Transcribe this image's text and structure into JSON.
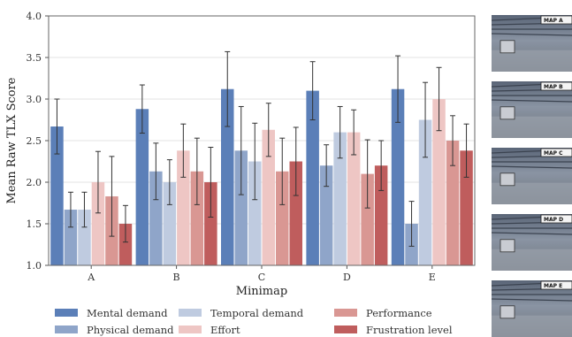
{
  "chart_data": {
    "type": "bar",
    "title": "",
    "xlabel": "Minimap",
    "ylabel": "Mean Raw TLX Score",
    "ylim": [
      1.0,
      4.0
    ],
    "yticks": [
      "1.0",
      "1.5",
      "2.0",
      "2.5",
      "3.0",
      "3.5",
      "4.0"
    ],
    "grid": true,
    "legend_position": "bottom",
    "categories": [
      "A",
      "B",
      "C",
      "D",
      "E"
    ],
    "series": [
      {
        "name": "Mental demand",
        "color": "#5b7fb8",
        "values": [
          2.67,
          2.88,
          3.12,
          3.1,
          3.12
        ],
        "errors": [
          0.33,
          0.29,
          0.45,
          0.35,
          0.4
        ]
      },
      {
        "name": "Physical demand",
        "color": "#8fa5c9",
        "values": [
          1.67,
          2.13,
          2.38,
          2.2,
          1.5
        ],
        "errors": [
          0.21,
          0.34,
          0.53,
          0.25,
          0.27
        ]
      },
      {
        "name": "Temporal demand",
        "color": "#bfcbe0",
        "values": [
          1.67,
          2.0,
          2.25,
          2.6,
          2.75
        ],
        "errors": [
          0.21,
          0.27,
          0.46,
          0.31,
          0.45
        ]
      },
      {
        "name": "Effort",
        "color": "#eec6c4",
        "values": [
          2.0,
          2.38,
          2.63,
          2.6,
          3.0
        ],
        "errors": [
          0.37,
          0.32,
          0.32,
          0.27,
          0.38
        ]
      },
      {
        "name": "Performance",
        "color": "#d99793",
        "values": [
          1.83,
          2.13,
          2.13,
          2.1,
          2.5
        ],
        "errors": [
          0.48,
          0.4,
          0.4,
          0.41,
          0.3
        ]
      },
      {
        "name": "Frustration level",
        "color": "#bf5d5d",
        "values": [
          1.5,
          2.0,
          2.25,
          2.2,
          2.38
        ],
        "errors": [
          0.22,
          0.42,
          0.41,
          0.3,
          0.32
        ]
      }
    ]
  },
  "thumbnails": [
    {
      "label": "MAP A"
    },
    {
      "label": "MAP B"
    },
    {
      "label": "MAP C"
    },
    {
      "label": "MAP D"
    },
    {
      "label": "MAP E"
    }
  ]
}
